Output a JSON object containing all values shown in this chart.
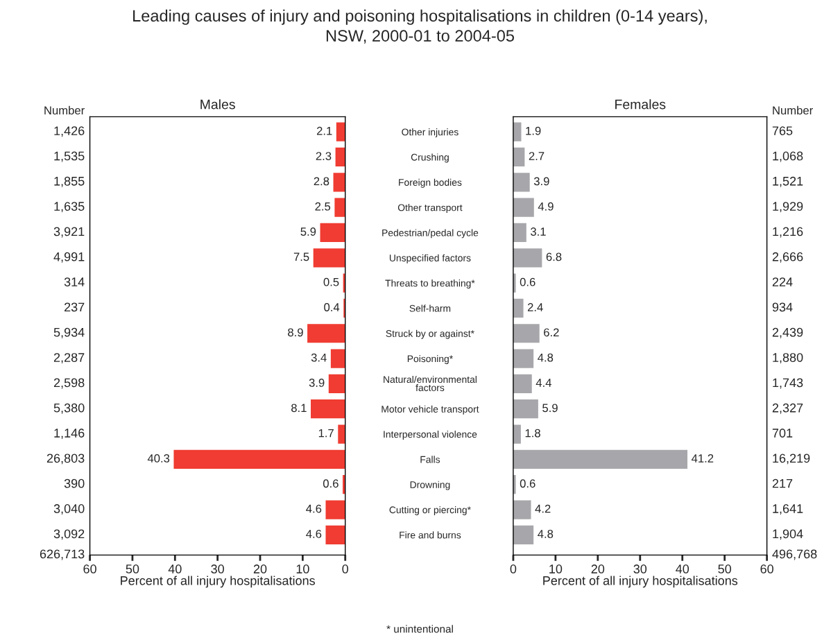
{
  "chart_data": [
    {
      "type": "bar",
      "orientation": "horizontal",
      "title": "Leading causes of injury and poisoning hospitalisations in children (0-14 years),\nNSW, 2000-01 to 2004-05",
      "subtitle": "Males",
      "xlabel": "Percent of all injury hospitalisations",
      "categories": [
        "Other injuries",
        "Crushing",
        "Foreign bodies",
        "Other transport",
        "Pedestrian/pedal cycle",
        "Unspecified factors",
        "Threats to breathing*",
        "Self-harm",
        "Struck by or against*",
        "Poisoning*",
        "Natural/environmental\nfactors",
        "Motor vehicle transport",
        "Interpersonal violence",
        "Falls",
        "Drowning",
        "Cutting or piercing*",
        "Fire and burns"
      ],
      "values": [
        2.1,
        2.3,
        2.8,
        2.5,
        5.9,
        7.5,
        0.5,
        0.4,
        8.9,
        3.4,
        3.9,
        8.1,
        1.7,
        40.3,
        0.6,
        4.6,
        4.6
      ],
      "color": "#f03c32",
      "xlim": [
        60,
        0
      ],
      "xticks": [
        60,
        50,
        40,
        30,
        20,
        10,
        0
      ],
      "data_labels": true,
      "grid": false,
      "legend": false,
      "annotations": [
        "Number",
        "626,713",
        "1,426",
        "1,535",
        "1,855",
        "1,635",
        "3,921",
        "4,991",
        "314",
        "237",
        "5,934",
        "2,287",
        "2,598",
        "5,380",
        "1,146",
        "26,803",
        "390",
        "3,040",
        "3,092"
      ]
    },
    {
      "type": "bar",
      "orientation": "horizontal",
      "subtitle": "Females",
      "xlabel": "Percent of all injury hospitalisations",
      "tick_labels": "x",
      "categories": [
        null,
        null,
        null,
        null,
        null,
        null,
        null,
        null,
        null,
        null,
        null,
        null,
        null,
        null,
        null,
        null,
        null
      ],
      "values": [
        1.9,
        2.7,
        3.9,
        4.9,
        3.1,
        6.8,
        0.6,
        2.4,
        6.2,
        4.8,
        4.4,
        5.9,
        1.8,
        41.2,
        0.6,
        4.2,
        4.8
      ],
      "color": "#a7a7ab",
      "xlim": [
        0,
        60
      ],
      "xticks": [
        0,
        10,
        20,
        30,
        40,
        50,
        60
      ],
      "data_labels": true,
      "grid": false,
      "legend": false,
      "annotations": [
        "Number",
        "496,768",
        "* unintentional",
        "765",
        "1,068",
        "1,521",
        "1,929",
        "1,216",
        "2,666",
        "224",
        "934",
        "2,439",
        "1,880",
        "1,743",
        "2,327",
        "701",
        "16,219",
        "217",
        "1,641",
        "1,904"
      ]
    }
  ]
}
